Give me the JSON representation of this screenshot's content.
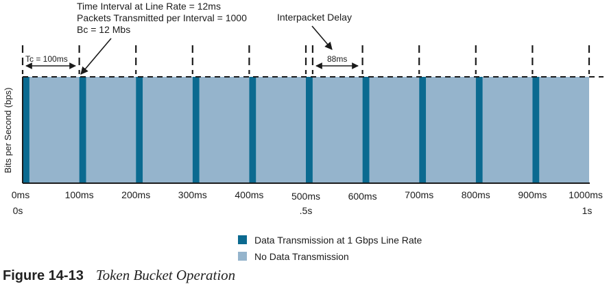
{
  "chart_data": {
    "type": "bar",
    "ylabel": "Bits per Second (bps)",
    "tick_labels": [
      "0ms",
      "100ms",
      "200ms",
      "300ms",
      "400ms",
      "500ms",
      "600ms",
      "700ms",
      "800ms",
      "900ms",
      "1000ms"
    ],
    "secondary_tick_labels": [
      {
        "label": "0s",
        "at_ms": 0
      },
      {
        "label": ".5s",
        "at_ms": 500
      },
      {
        "label": "1s",
        "at_ms": 1000
      }
    ],
    "x_range_ms": [
      0,
      1000
    ],
    "interval_ms": 100,
    "transmit_duration_ms": 12,
    "intervals": [
      {
        "start_ms": 0,
        "transmit_ms": 12
      },
      {
        "start_ms": 100,
        "transmit_ms": 12
      },
      {
        "start_ms": 200,
        "transmit_ms": 12
      },
      {
        "start_ms": 300,
        "transmit_ms": 12
      },
      {
        "start_ms": 400,
        "transmit_ms": 12
      },
      {
        "start_ms": 500,
        "transmit_ms": 12
      },
      {
        "start_ms": 600,
        "transmit_ms": 12
      },
      {
        "start_ms": 700,
        "transmit_ms": 12
      },
      {
        "start_ms": 800,
        "transmit_ms": 12
      },
      {
        "start_ms": 900,
        "transmit_ms": 12
      }
    ],
    "annotations": {
      "callout_lines": [
        "Time Interval at Line Rate = 12ms",
        "Packets Transmitted per Interval = 1000",
        "Bc = 12 Mbs"
      ],
      "tc_label": "Tc = 100ms",
      "interpacket_title": "Interpacket Delay",
      "delay_label": "88ms"
    },
    "legend": [
      {
        "label": "Data Transmission at 1 Gbps Line Rate",
        "color": "#0b6a90"
      },
      {
        "label": "No Data Transmission",
        "color": "#95b4cc"
      }
    ]
  },
  "figure": {
    "label": "Figure 14-13",
    "title": "Token Bucket Operation"
  },
  "colors": {
    "transmit": "#0b6a90",
    "idle": "#95b4cc",
    "ink": "#1a1a1a"
  }
}
